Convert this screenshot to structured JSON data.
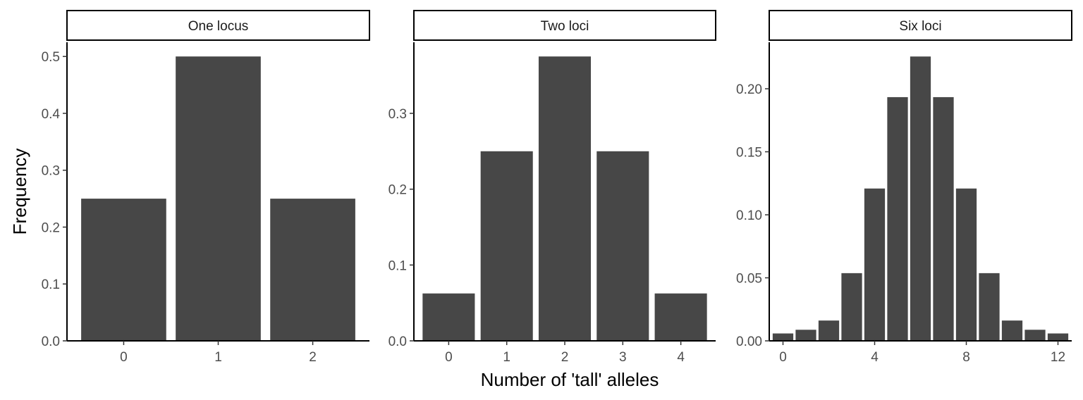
{
  "chart_data": {
    "ylabel": "Frequency",
    "xlabel": "Number of 'tall' alleles",
    "bar_color": "#474747",
    "panels": [
      {
        "type": "bar",
        "title": "One locus",
        "x": [
          0,
          1,
          2
        ],
        "values": [
          0.25,
          0.5,
          0.25
        ],
        "xlim": [
          -0.6,
          2.6
        ],
        "ylim": [
          0,
          0.525
        ],
        "xticks": [
          0,
          1,
          2
        ],
        "yticks": [
          0.0,
          0.1,
          0.2,
          0.3,
          0.4,
          0.5
        ],
        "ytick_labels": [
          "0.0",
          "0.1",
          "0.2",
          "0.3",
          "0.4",
          "0.5"
        ]
      },
      {
        "type": "bar",
        "title": "Two loci",
        "x": [
          0,
          1,
          2,
          3,
          4
        ],
        "values": [
          0.0625,
          0.25,
          0.375,
          0.25,
          0.0625
        ],
        "xlim": [
          -0.6,
          4.6
        ],
        "ylim": [
          0,
          0.39375
        ],
        "xticks": [
          0,
          1,
          2,
          3,
          4
        ],
        "yticks": [
          0.0,
          0.1,
          0.2,
          0.3
        ],
        "ytick_labels": [
          "0.0",
          "0.1",
          "0.2",
          "0.3"
        ]
      },
      {
        "type": "bar",
        "title": "Six loci",
        "x": [
          0,
          1,
          2,
          3,
          4,
          5,
          6,
          7,
          8,
          9,
          10,
          11,
          12
        ],
        "values": [
          0.00586,
          0.00879,
          0.01611,
          0.05371,
          0.12085,
          0.19336,
          0.22559,
          0.19336,
          0.12085,
          0.05371,
          0.01611,
          0.00879,
          0.00586
        ],
        "xlim": [
          -0.6,
          12.6
        ],
        "ylim": [
          0,
          0.2369
        ],
        "xticks": [
          0,
          4,
          8,
          12
        ],
        "yticks": [
          0.0,
          0.05,
          0.1,
          0.15,
          0.2
        ],
        "ytick_labels": [
          "0.00",
          "0.05",
          "0.10",
          "0.15",
          "0.20"
        ]
      }
    ]
  }
}
